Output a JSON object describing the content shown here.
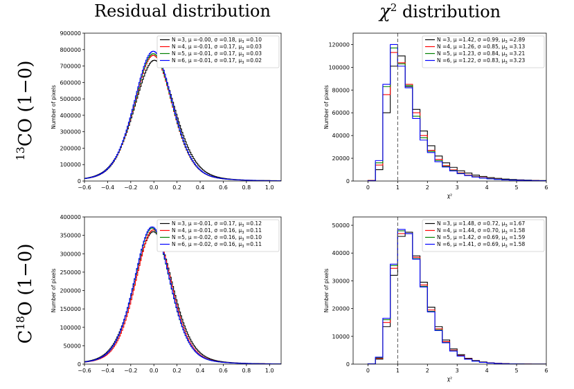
{
  "titles": {
    "residual": "Residual distribution",
    "chi_prefix": "χ",
    "chi_exp": "2",
    "chi_suffix": " distribution"
  },
  "rows": [
    {
      "mass": "13",
      "molecule": "CO (1−0)"
    },
    {
      "pre": "C",
      "mass": "18",
      "molecule": "O (1−0)"
    }
  ],
  "colors": {
    "N3": "#000000",
    "N4": "#ff0000",
    "N5": "#008000",
    "N6": "#0000ff"
  },
  "chart_data": [
    {
      "type": "histogram",
      "ylabel": "Number of pixels",
      "xlabel": "",
      "xlim": [
        -0.6,
        1.1
      ],
      "ylim": [
        0,
        900000
      ],
      "xticks": [
        "−0.6",
        "−0.4",
        "−0.2",
        "0.0",
        "0.2",
        "0.4",
        "0.6",
        "0.8",
        "1.0"
      ],
      "xtick_values": [
        -0.6,
        -0.4,
        -0.2,
        0.0,
        0.2,
        0.4,
        0.6,
        0.8,
        1.0
      ],
      "yticks": [
        "0",
        "100000",
        "200000",
        "300000",
        "400000",
        "500000",
        "600000",
        "700000",
        "800000",
        "900000"
      ],
      "ytick_values": [
        0,
        100000,
        200000,
        300000,
        400000,
        500000,
        600000,
        700000,
        800000,
        900000
      ],
      "legend_position": "top-right",
      "series": [
        {
          "name": "N =3,  μ =-0.00,  σ =0.18,  μ₃ =0.10",
          "color": "#000000",
          "mu": 0.0,
          "sigma": 0.18,
          "peak": 735000
        },
        {
          "name": "N =4,  μ =-0.01,  σ =0.17,  μ₃ =0.03",
          "color": "#ff0000",
          "mu": -0.01,
          "sigma": 0.17,
          "peak": 765000
        },
        {
          "name": "N =5,  μ =-0.01,  σ =0.17,  μ₃ =0.03",
          "color": "#008000",
          "mu": -0.01,
          "sigma": 0.17,
          "peak": 775000
        },
        {
          "name": "N =6,  μ =-0.01,  σ =0.17,  μ₃ =0.02",
          "color": "#0000ff",
          "mu": -0.01,
          "sigma": 0.17,
          "peak": 790000
        }
      ]
    },
    {
      "type": "histogram",
      "ylabel": "Number of pixels",
      "xlabel": "χ²",
      "xlim": [
        -0.5,
        6
      ],
      "ylim": [
        0,
        130000
      ],
      "xticks": [
        "0",
        "1",
        "2",
        "3",
        "4",
        "5",
        "6"
      ],
      "xtick_values": [
        0,
        1,
        2,
        3,
        4,
        5,
        6
      ],
      "yticks": [
        "0",
        "20000",
        "40000",
        "60000",
        "80000",
        "100000",
        "120000"
      ],
      "ytick_values": [
        0,
        20000,
        40000,
        60000,
        80000,
        100000,
        120000
      ],
      "vline_x": 1,
      "legend_position": "top-right",
      "bin_edges": [
        0,
        0.25,
        0.5,
        0.75,
        1,
        1.25,
        1.5,
        1.75,
        2,
        2.25,
        2.5,
        2.75,
        3,
        3.25,
        3.5,
        3.75,
        4,
        4.25,
        4.5,
        4.75,
        5,
        5.25,
        5.5,
        5.75,
        6
      ],
      "series": [
        {
          "name": "N =3,  μ =1.42,  σ =0.99,  μ₃ =2.89",
          "color": "#000000",
          "values": [
            500,
            10000,
            60000,
            101000,
            110000,
            83000,
            63000,
            44000,
            31000,
            22000,
            16000,
            12000,
            9000,
            7000,
            5200,
            4000,
            3000,
            2300,
            1700,
            1300,
            1000,
            800,
            600,
            400
          ]
        },
        {
          "name": "N =4,  μ =1.26,  σ =0.85,  μ₃ =3.13",
          "color": "#ff0000",
          "values": [
            400,
            14000,
            76000,
            113000,
            104000,
            85000,
            60000,
            40000,
            27000,
            19000,
            13500,
            9800,
            7200,
            5300,
            3900,
            2900,
            2200,
            1600,
            1200,
            900,
            700,
            500,
            400,
            300
          ]
        },
        {
          "name": "N =5,  μ =1.23,  σ =0.84,  μ₃ =3.21",
          "color": "#008000",
          "values": [
            300,
            16000,
            83000,
            117000,
            103000,
            84000,
            57000,
            38000,
            26000,
            18000,
            12800,
            9300,
            6800,
            5000,
            3700,
            2700,
            2000,
            1500,
            1100,
            850,
            650,
            500,
            380,
            280
          ]
        },
        {
          "name": "N =6,  μ =1.22,  σ =0.83,  μ₃ =3.23",
          "color": "#0000ff",
          "values": [
            300,
            18000,
            85000,
            120000,
            101000,
            82000,
            55000,
            36000,
            25000,
            17000,
            12300,
            8900,
            6500,
            4800,
            3500,
            2600,
            1900,
            1400,
            1050,
            800,
            620,
            470,
            360,
            270
          ]
        }
      ]
    },
    {
      "type": "histogram",
      "ylabel": "Number of pixels",
      "xlabel": "",
      "xlim": [
        -0.6,
        1.1
      ],
      "ylim": [
        0,
        400000
      ],
      "xticks": [
        "−0.6",
        "−0.4",
        "−0.2",
        "0.0",
        "0.2",
        "0.4",
        "0.6",
        "0.8",
        "1.0"
      ],
      "xtick_values": [
        -0.6,
        -0.4,
        -0.2,
        0.0,
        0.2,
        0.4,
        0.6,
        0.8,
        1.0
      ],
      "yticks": [
        "0",
        "50000",
        "100000",
        "150000",
        "200000",
        "250000",
        "300000",
        "350000",
        "400000"
      ],
      "ytick_values": [
        0,
        50000,
        100000,
        150000,
        200000,
        250000,
        300000,
        350000,
        400000
      ],
      "legend_position": "top-right",
      "series": [
        {
          "name": "N =3,  μ =-0.01,  σ =0.17,  μ₃ =0.12",
          "color": "#000000",
          "mu": -0.01,
          "sigma": 0.17,
          "peak": 360000
        },
        {
          "name": "N =4,  μ =-0.01,  σ =0.16,  μ₃ =0.11",
          "color": "#ff0000",
          "mu": -0.01,
          "sigma": 0.16,
          "peak": 365000
        },
        {
          "name": "N =5,  μ =-0.02,  σ =0.16,  μ₃ =0.10",
          "color": "#008000",
          "mu": -0.02,
          "sigma": 0.16,
          "peak": 370000
        },
        {
          "name": "N =6,  μ =-0.02,  σ =0.16,  μ₃ =0.11",
          "color": "#0000ff",
          "mu": -0.02,
          "sigma": 0.16,
          "peak": 373000
        }
      ]
    },
    {
      "type": "histogram",
      "ylabel": "Number of pixels",
      "xlabel": "χ²",
      "xlim": [
        -0.5,
        6
      ],
      "ylim": [
        0,
        53000
      ],
      "xticks": [
        "0",
        "1",
        "2",
        "3",
        "4",
        "5",
        "6"
      ],
      "xtick_values": [
        0,
        1,
        2,
        3,
        4,
        5,
        6
      ],
      "yticks": [
        "0",
        "10000",
        "20000",
        "30000",
        "40000",
        "50000"
      ],
      "ytick_values": [
        0,
        10000,
        20000,
        30000,
        40000,
        50000
      ],
      "vline_x": 1,
      "legend_position": "top-right",
      "bin_edges": [
        0,
        0.25,
        0.5,
        0.75,
        1,
        1.25,
        1.5,
        1.75,
        2,
        2.25,
        2.5,
        2.75,
        3,
        3.25,
        3.5,
        3.75,
        4,
        4.25,
        4.5,
        4.75,
        5,
        5.25,
        5.5,
        5.75,
        6
      ],
      "series": [
        {
          "name": "N =3,  μ =1.48,  σ =0.72,  μ₃ =1.67",
          "color": "#000000",
          "values": [
            100,
            1800,
            13500,
            32000,
            46000,
            47500,
            39000,
            29500,
            20500,
            13500,
            8700,
            5500,
            3400,
            2100,
            1300,
            800,
            500,
            300,
            180,
            110,
            70,
            40,
            25,
            15
          ]
        },
        {
          "name": "N =4,  μ =1.44,  σ =0.70,  μ₃ =1.58",
          "color": "#ff0000",
          "values": [
            100,
            2100,
            15000,
            34500,
            47000,
            47000,
            38500,
            28500,
            19500,
            12700,
            8100,
            5000,
            3100,
            1900,
            1150,
            700,
            430,
            260,
            160,
            95,
            60,
            35,
            20,
            12
          ]
        },
        {
          "name": "N =5,  μ =1.42,  σ =0.69,  μ₃ =1.59",
          "color": "#008000",
          "values": [
            100,
            2300,
            16000,
            35500,
            48000,
            47000,
            38000,
            28000,
            19000,
            12300,
            7800,
            4800,
            2950,
            1800,
            1100,
            660,
            400,
            240,
            150,
            90,
            55,
            33,
            20,
            12
          ]
        },
        {
          "name": "N =6,  μ =1.41,  σ =0.69,  μ₃ =1.58",
          "color": "#0000ff",
          "values": [
            100,
            2500,
            16500,
            36000,
            48500,
            47000,
            37800,
            27800,
            18800,
            12100,
            7700,
            4700,
            2900,
            1750,
            1070,
            640,
            390,
            235,
            145,
            88,
            54,
            32,
            19,
            11
          ]
        }
      ]
    }
  ]
}
